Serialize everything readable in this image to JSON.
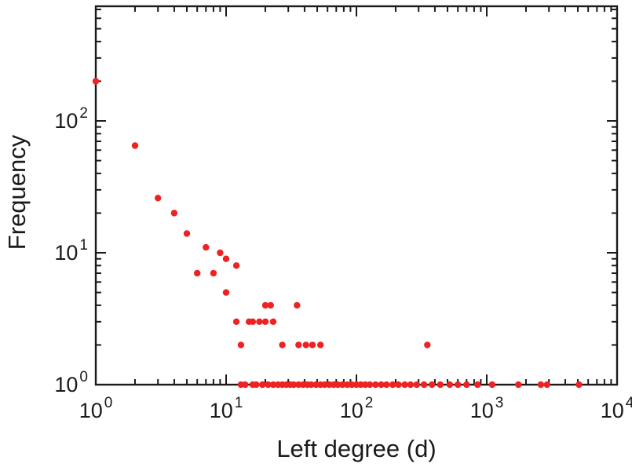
{
  "chart_data": {
    "type": "scatter",
    "title": "",
    "xlabel": "Left degree (d)",
    "ylabel": "Frequency",
    "x_scale": "log",
    "y_scale": "log",
    "xlim": [
      1,
      10000
    ],
    "ylim": [
      1,
      740
    ],
    "grid": false,
    "legend": "none",
    "marker_color": "#ee2222",
    "frame_color": "#1a1a1a",
    "x_major_ticks": [
      1,
      10,
      100,
      1000,
      10000
    ],
    "x_tick_labels": [
      "10^0",
      "10^1",
      "10^2",
      "10^3",
      "10^4"
    ],
    "y_major_ticks": [
      1,
      10,
      100
    ],
    "y_tick_labels": [
      "10^0",
      "10^1",
      "10^2"
    ],
    "points": [
      [
        1,
        200
      ],
      [
        2,
        65
      ],
      [
        3,
        26
      ],
      [
        4,
        20
      ],
      [
        5,
        14
      ],
      [
        6,
        7
      ],
      [
        7,
        11
      ],
      [
        8,
        7
      ],
      [
        9,
        10
      ],
      [
        10,
        9
      ],
      [
        10,
        5
      ],
      [
        12,
        8
      ],
      [
        12,
        3
      ],
      [
        13,
        2
      ],
      [
        15,
        3
      ],
      [
        16,
        3
      ],
      [
        18,
        3
      ],
      [
        20,
        4
      ],
      [
        20,
        3
      ],
      [
        22,
        4
      ],
      [
        23,
        3
      ],
      [
        27,
        2
      ],
      [
        35,
        4
      ],
      [
        36,
        2
      ],
      [
        41,
        2
      ],
      [
        46,
        2
      ],
      [
        53,
        2
      ],
      [
        350,
        2
      ],
      [
        13,
        1
      ],
      [
        14,
        1
      ],
      [
        16,
        1
      ],
      [
        17,
        1
      ],
      [
        19,
        1
      ],
      [
        21,
        1
      ],
      [
        23,
        1
      ],
      [
        25,
        1
      ],
      [
        27,
        1
      ],
      [
        29,
        1
      ],
      [
        31,
        1
      ],
      [
        33,
        1
      ],
      [
        36,
        1
      ],
      [
        39,
        1
      ],
      [
        42,
        1
      ],
      [
        45,
        1
      ],
      [
        49,
        1
      ],
      [
        53,
        1
      ],
      [
        57,
        1
      ],
      [
        62,
        1
      ],
      [
        67,
        1
      ],
      [
        72,
        1
      ],
      [
        78,
        1
      ],
      [
        85,
        1
      ],
      [
        92,
        1
      ],
      [
        100,
        1
      ],
      [
        108,
        1
      ],
      [
        117,
        1
      ],
      [
        127,
        1
      ],
      [
        140,
        1
      ],
      [
        155,
        1
      ],
      [
        170,
        1
      ],
      [
        190,
        1
      ],
      [
        210,
        1
      ],
      [
        235,
        1
      ],
      [
        260,
        1
      ],
      [
        290,
        1
      ],
      [
        330,
        1
      ],
      [
        380,
        1
      ],
      [
        440,
        1
      ],
      [
        520,
        1
      ],
      [
        600,
        1
      ],
      [
        700,
        1
      ],
      [
        850,
        1
      ],
      [
        1100,
        1
      ],
      [
        1750,
        1
      ],
      [
        2600,
        1
      ],
      [
        2900,
        1
      ],
      [
        5100,
        1
      ]
    ]
  }
}
